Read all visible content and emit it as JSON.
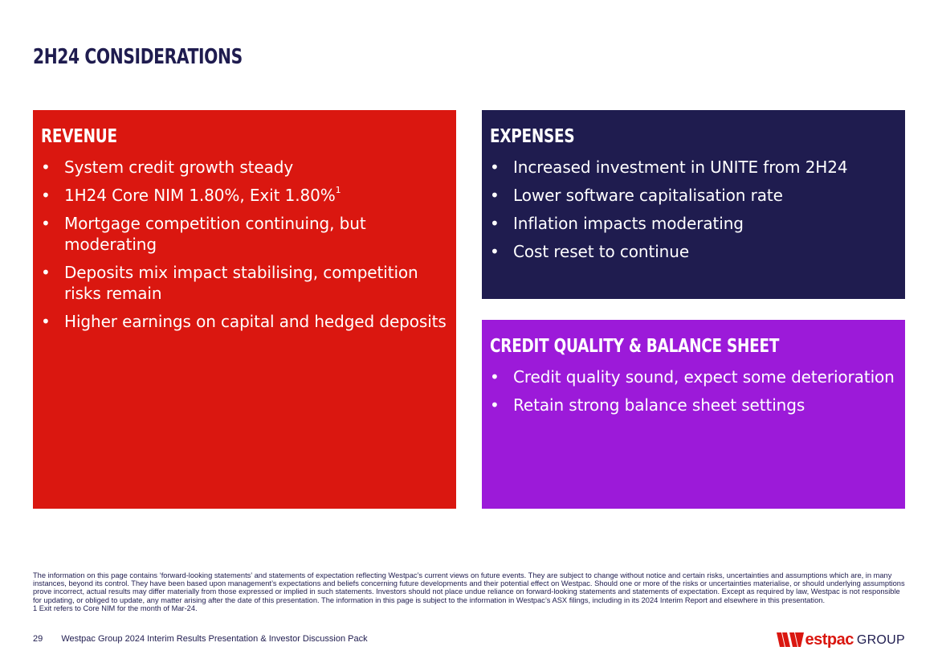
{
  "title": "2H24 CONSIDERATIONS",
  "colors": {
    "revenue": "#da1710",
    "expenses": "#1f1c4f",
    "credit": "#9c1ad9",
    "navy": "#1f1c4f"
  },
  "revenue": {
    "heading": "REVENUE",
    "items": [
      "System credit growth steady",
      "1H24 Core NIM 1.80%, Exit 1.80%",
      "Mortgage competition continuing, but moderating",
      "Deposits mix impact stabilising, competition risks remain",
      "Higher earnings on capital and hedged deposits"
    ],
    "footnote_mark": "1"
  },
  "expenses": {
    "heading": "EXPENSES",
    "items": [
      "Increased investment in UNITE from 2H24",
      "Lower software capitalisation rate",
      "Inflation impacts moderating",
      "Cost reset to continue"
    ]
  },
  "credit": {
    "heading": "CREDIT QUALITY & BALANCE SHEET",
    "items": [
      "Credit quality sound, expect some deterioration",
      "Retain strong balance sheet settings"
    ]
  },
  "bullet_char": "•",
  "disclaimer": "The information on this page contains ‘forward-looking statements’ and statements of expectation reflecting Westpac’s current views on future events. They are subject to change without notice and certain risks, uncertainties and assumptions which are, in many instances, beyond its control. They have been based upon management’s expectations and beliefs concerning future developments and their potential effect on Westpac. Should one or more of the risks or uncertainties materialise, or should underlying assumptions prove incorrect, actual results may differ materially from those expressed or implied in such statements. Investors should not place undue reliance on forward-looking statements and statements of expectation. Except as required by law, Westpac is not responsible for updating, or obliged to update, any matter arising after the date of this presentation. The information in this page is subject to the information in Westpac’s ASX filings, including in its 2024 Interim Report and elsewhere in this presentation.",
  "footnote": "1 Exit refers to Core NIM for the month of Mar-24.",
  "footer": {
    "page_number": "29",
    "text": "Westpac Group 2024 Interim Results Presentation & Investor Discussion Pack"
  },
  "logo": {
    "word": "estpac",
    "group": "GROUP",
    "icon": "westpac-w-icon"
  }
}
